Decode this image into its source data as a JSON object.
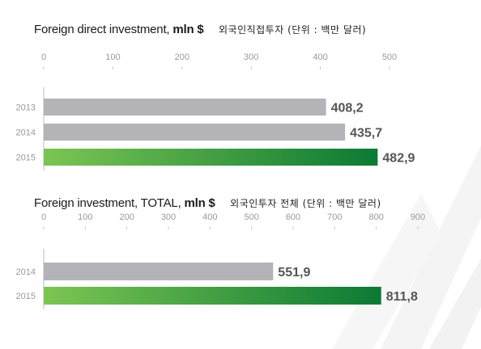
{
  "colors": {
    "gray_bar": "#b3b3b8",
    "green_start": "#7cc552",
    "green_end": "#0b7a34",
    "value_text": "#555555",
    "tick_text": "#999999",
    "background_shapes": "#f4f4f4"
  },
  "chart_data": [
    {
      "type": "bar",
      "orientation": "horizontal",
      "title_en_regular": "Foreign direct investment, ",
      "title_en_bold": "mln $",
      "title_kr": "외국인직접투자 (단위 : 백만 달러)",
      "categories": [
        "2013",
        "2014",
        "2015"
      ],
      "values": [
        408.2,
        435.7,
        482.9
      ],
      "value_labels": [
        "408,2",
        "435,7",
        "482,9"
      ],
      "bar_colors": [
        "gray",
        "gray",
        "green"
      ],
      "xlim": [
        0,
        500
      ],
      "ticks": [
        "0",
        "100",
        "200",
        "300",
        "400",
        "500"
      ],
      "grid": false,
      "legend": "none"
    },
    {
      "type": "bar",
      "orientation": "horizontal",
      "title_en_regular": "Foreign investment, TOTAL, ",
      "title_en_bold": "mln $",
      "title_kr": "외국인투자 전체 (단위 : 백만 달러)",
      "categories": [
        "2014",
        "2015"
      ],
      "values": [
        551.9,
        811.8
      ],
      "value_labels": [
        "551,9",
        "811,8"
      ],
      "bar_colors": [
        "gray",
        "green"
      ],
      "xlim": [
        0,
        900
      ],
      "ticks": [
        "0",
        "100",
        "200",
        "300",
        "400",
        "500",
        "600",
        "700",
        "800",
        "900"
      ],
      "grid": false,
      "legend": "none"
    }
  ]
}
